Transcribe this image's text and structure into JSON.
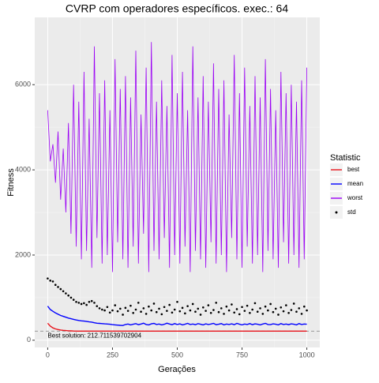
{
  "chart_data": {
    "type": "line",
    "title": "CVRP com operadores específicos. exec.: 64",
    "x_label": "Gerações",
    "y_label": "Fitness",
    "legend_title": "Statistic",
    "annotation": "Best solution: 212.711539702904",
    "reference_line": 212.711539702904,
    "xlim": [
      -50,
      1050
    ],
    "ylim": [
      -170,
      7580
    ],
    "xticks": [
      0,
      250,
      500,
      750,
      1000
    ],
    "yticks": [
      0,
      2000,
      4000,
      6000
    ],
    "grid": true,
    "minor_grid": true,
    "x": [
      0,
      10,
      20,
      30,
      40,
      50,
      60,
      70,
      80,
      90,
      100,
      110,
      120,
      130,
      140,
      150,
      160,
      170,
      180,
      190,
      200,
      210,
      220,
      230,
      240,
      250,
      260,
      270,
      280,
      290,
      300,
      310,
      320,
      330,
      340,
      350,
      360,
      370,
      380,
      390,
      400,
      410,
      420,
      430,
      440,
      450,
      460,
      470,
      480,
      490,
      500,
      510,
      520,
      530,
      540,
      550,
      560,
      570,
      580,
      590,
      600,
      610,
      620,
      630,
      640,
      650,
      660,
      670,
      680,
      690,
      700,
      710,
      720,
      730,
      740,
      750,
      760,
      770,
      780,
      790,
      800,
      810,
      820,
      830,
      840,
      850,
      860,
      870,
      880,
      890,
      900,
      910,
      920,
      930,
      940,
      950,
      960,
      970,
      980,
      990,
      1000
    ],
    "series": [
      {
        "name": "best",
        "color": "#e8141c",
        "style": "line",
        "values": [
          400,
          330,
          290,
          265,
          250,
          240,
          232,
          226,
          222,
          219,
          216,
          213,
          213,
          213,
          213,
          213,
          213,
          213,
          213,
          213,
          213,
          213,
          213,
          213,
          213,
          213,
          213,
          213,
          213,
          213,
          213,
          213,
          213,
          213,
          213,
          213,
          213,
          213,
          213,
          213,
          213,
          213,
          213,
          213,
          213,
          213,
          213,
          213,
          213,
          213,
          213,
          213,
          213,
          213,
          213,
          213,
          213,
          213,
          213,
          213,
          213,
          213,
          213,
          213,
          213,
          213,
          213,
          213,
          213,
          213,
          213,
          213,
          213,
          213,
          213,
          213,
          213,
          213,
          213,
          213,
          213,
          213,
          213,
          213,
          213,
          213,
          213,
          213,
          213,
          213,
          213,
          213,
          213,
          213,
          213,
          213,
          213,
          213,
          213,
          213,
          213
        ]
      },
      {
        "name": "mean",
        "color": "#0000ff",
        "style": "line",
        "values": [
          800,
          720,
          680,
          640,
          610,
          580,
          560,
          540,
          520,
          505,
          490,
          475,
          465,
          455,
          450,
          440,
          430,
          425,
          410,
          400,
          395,
          390,
          385,
          380,
          375,
          365,
          360,
          355,
          350,
          345,
          370,
          380,
          360,
          375,
          390,
          365,
          380,
          400,
          370,
          360,
          385,
          395,
          370,
          380,
          360,
          375,
          400,
          380,
          365,
          390,
          370,
          385,
          360,
          375,
          395,
          370,
          380,
          365,
          390,
          375,
          360,
          385,
          370,
          380,
          395,
          365,
          375,
          390,
          360,
          380,
          370,
          385,
          365,
          395,
          375,
          360,
          380,
          370,
          390,
          365,
          385,
          375,
          360,
          380,
          395,
          370,
          365,
          385,
          375,
          360,
          390,
          370,
          380,
          365,
          385,
          375,
          360,
          390,
          370,
          380,
          375
        ]
      },
      {
        "name": "worst",
        "color": "#9b00f5",
        "style": "line",
        "values": [
          5400,
          4200,
          4600,
          3700,
          4900,
          3300,
          4500,
          3000,
          5100,
          2500,
          6000,
          2200,
          5600,
          1900,
          6300,
          2100,
          5200,
          1700,
          6900,
          2400,
          5800,
          1800,
          6100,
          2000,
          5400,
          1600,
          6600,
          2300,
          5900,
          1900,
          6200,
          1700,
          5700,
          2200,
          6800,
          1800,
          5300,
          2500,
          6400,
          1600,
          7000,
          2100,
          5600,
          1900,
          6100,
          2400,
          5500,
          1700,
          6700,
          2000,
          5800,
          1800,
          6300,
          2200,
          5400,
          1600,
          6900,
          2100,
          5700,
          1900,
          6200,
          1700,
          5600,
          2300,
          6500,
          1800,
          5900,
          2000,
          6100,
          1600,
          5300,
          2400,
          6700,
          1900,
          5800,
          1700,
          6400,
          2200,
          5500,
          1800,
          6200,
          2000,
          5700,
          1600,
          6600,
          2100,
          5900,
          1900,
          5400,
          1700,
          6300,
          2300,
          5800,
          1800,
          6000,
          2000,
          5600,
          1700,
          6100,
          1900,
          6400
        ]
      },
      {
        "name": "std",
        "color": "#000000",
        "style": "points",
        "values": [
          1450,
          1400,
          1380,
          1300,
          1250,
          1200,
          1150,
          1100,
          1050,
          1000,
          950,
          900,
          880,
          850,
          870,
          830,
          900,
          920,
          880,
          800,
          750,
          720,
          700,
          780,
          650,
          700,
          820,
          680,
          740,
          600,
          760,
          690,
          810,
          640,
          720,
          880,
          670,
          750,
          620,
          790,
          700,
          860,
          660,
          740,
          610,
          780,
          690,
          830,
          650,
          720,
          900,
          680,
          760,
          630,
          800,
          700,
          850,
          670,
          740,
          600,
          770,
          690,
          820,
          640,
          710,
          880,
          660,
          750,
          620,
          790,
          700,
          840,
          650,
          730,
          610,
          780,
          690,
          810,
          640,
          720,
          870,
          670,
          750,
          620,
          790,
          700,
          850,
          660,
          740,
          600,
          770,
          680,
          820,
          640,
          710,
          860,
          670,
          750,
          620,
          790,
          700
        ]
      }
    ]
  }
}
